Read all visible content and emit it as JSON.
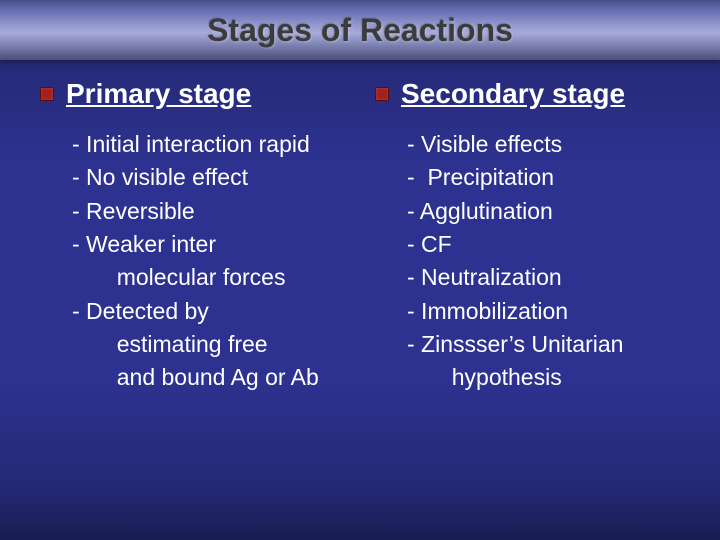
{
  "slide": {
    "title": "Stages of Reactions",
    "background_gradient": [
      "#1a1d52",
      "#252975",
      "#2d3290",
      "#2d3290",
      "#252975",
      "#1a1d52"
    ],
    "title_band_gradient": [
      "#4a4f8b",
      "#6c72b5",
      "#9196cc",
      "#a6abd8",
      "#7d82b2",
      "#5e638e",
      "#4b4f78"
    ],
    "title_color": "#3b3b3b",
    "title_fontsize": 32,
    "heading_fontsize": 28,
    "body_fontsize": 23,
    "text_color": "#ffffff",
    "bullet_color": "#a32020"
  },
  "columns": {
    "left": {
      "heading": "Primary stage",
      "lines": [
        "- Initial interaction rapid",
        "- No visible effect",
        "- Reversible",
        "- Weaker inter",
        "       molecular forces",
        "- Detected by",
        "       estimating free",
        "       and bound Ag or Ab"
      ]
    },
    "right": {
      "heading": "Secondary stage",
      "lines": [
        "- Visible effects",
        "-  Precipitation",
        "- Agglutination",
        "- CF",
        "- Neutralization",
        "- Immobilization",
        "- Zinssser’s Unitarian",
        "       hypothesis"
      ]
    }
  }
}
